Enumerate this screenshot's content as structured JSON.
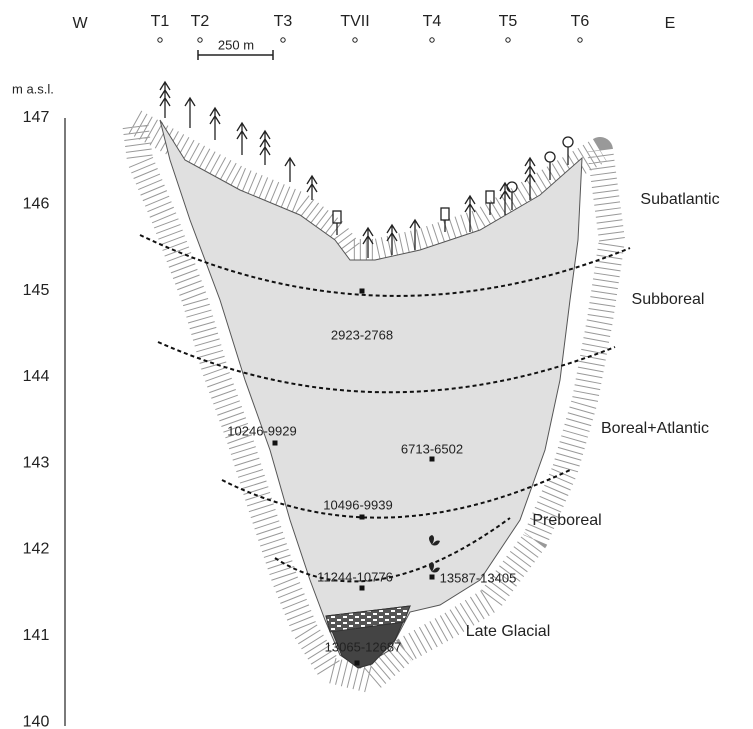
{
  "compass": {
    "west": "W",
    "east": "E"
  },
  "transects": [
    "T1",
    "T2",
    "T3",
    "TVII",
    "T4",
    "T5",
    "T6"
  ],
  "scale_bar": "250 m",
  "axis": {
    "title": "m a.s.l.",
    "ticks": [
      147,
      146,
      145,
      144,
      143,
      142,
      141,
      140
    ]
  },
  "zones": [
    "Subatlantic",
    "Subboreal",
    "Boreal+Atlantic",
    "Preboreal",
    "Late Glacial"
  ],
  "dates": [
    "2923-2768",
    "10246-9929",
    "6713-6502",
    "10496-9939",
    "11244-10776",
    "13587-13405",
    "13065-12687"
  ]
}
